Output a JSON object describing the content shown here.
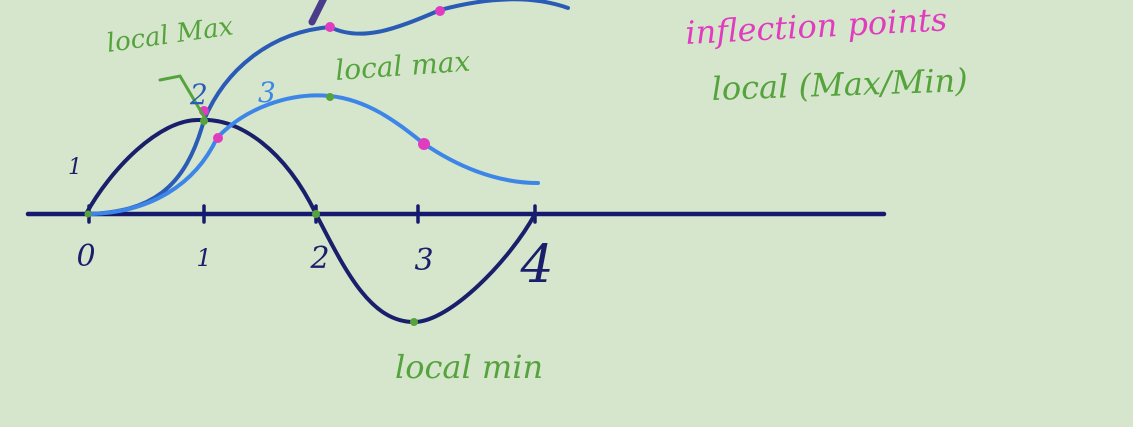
{
  "colors": {
    "background": "#d6e6cc",
    "axis": "#161a6e",
    "curve1": "#1a1f6b",
    "curve2": "#2a5bb5",
    "curve3": "#3d86e8",
    "inflection_point": "#e03cbf",
    "extremum_point": "#55a33c",
    "green_text": "#55a33c",
    "magenta_text": "#e03cbf",
    "blue_label": "#3d86e8",
    "dark_label": "#1a1f6b"
  },
  "axis": {
    "ticks": [
      "0",
      "1",
      "2",
      "3",
      "4"
    ]
  },
  "curve_labels": {
    "c1": "1",
    "c2": "2",
    "c3": "3"
  },
  "annotations": {
    "local_max_1": "local Max",
    "local_max_2": "local max",
    "local_min": "local min"
  },
  "legend": {
    "line1": "inflection points",
    "line2": "local (Max/Min)"
  }
}
